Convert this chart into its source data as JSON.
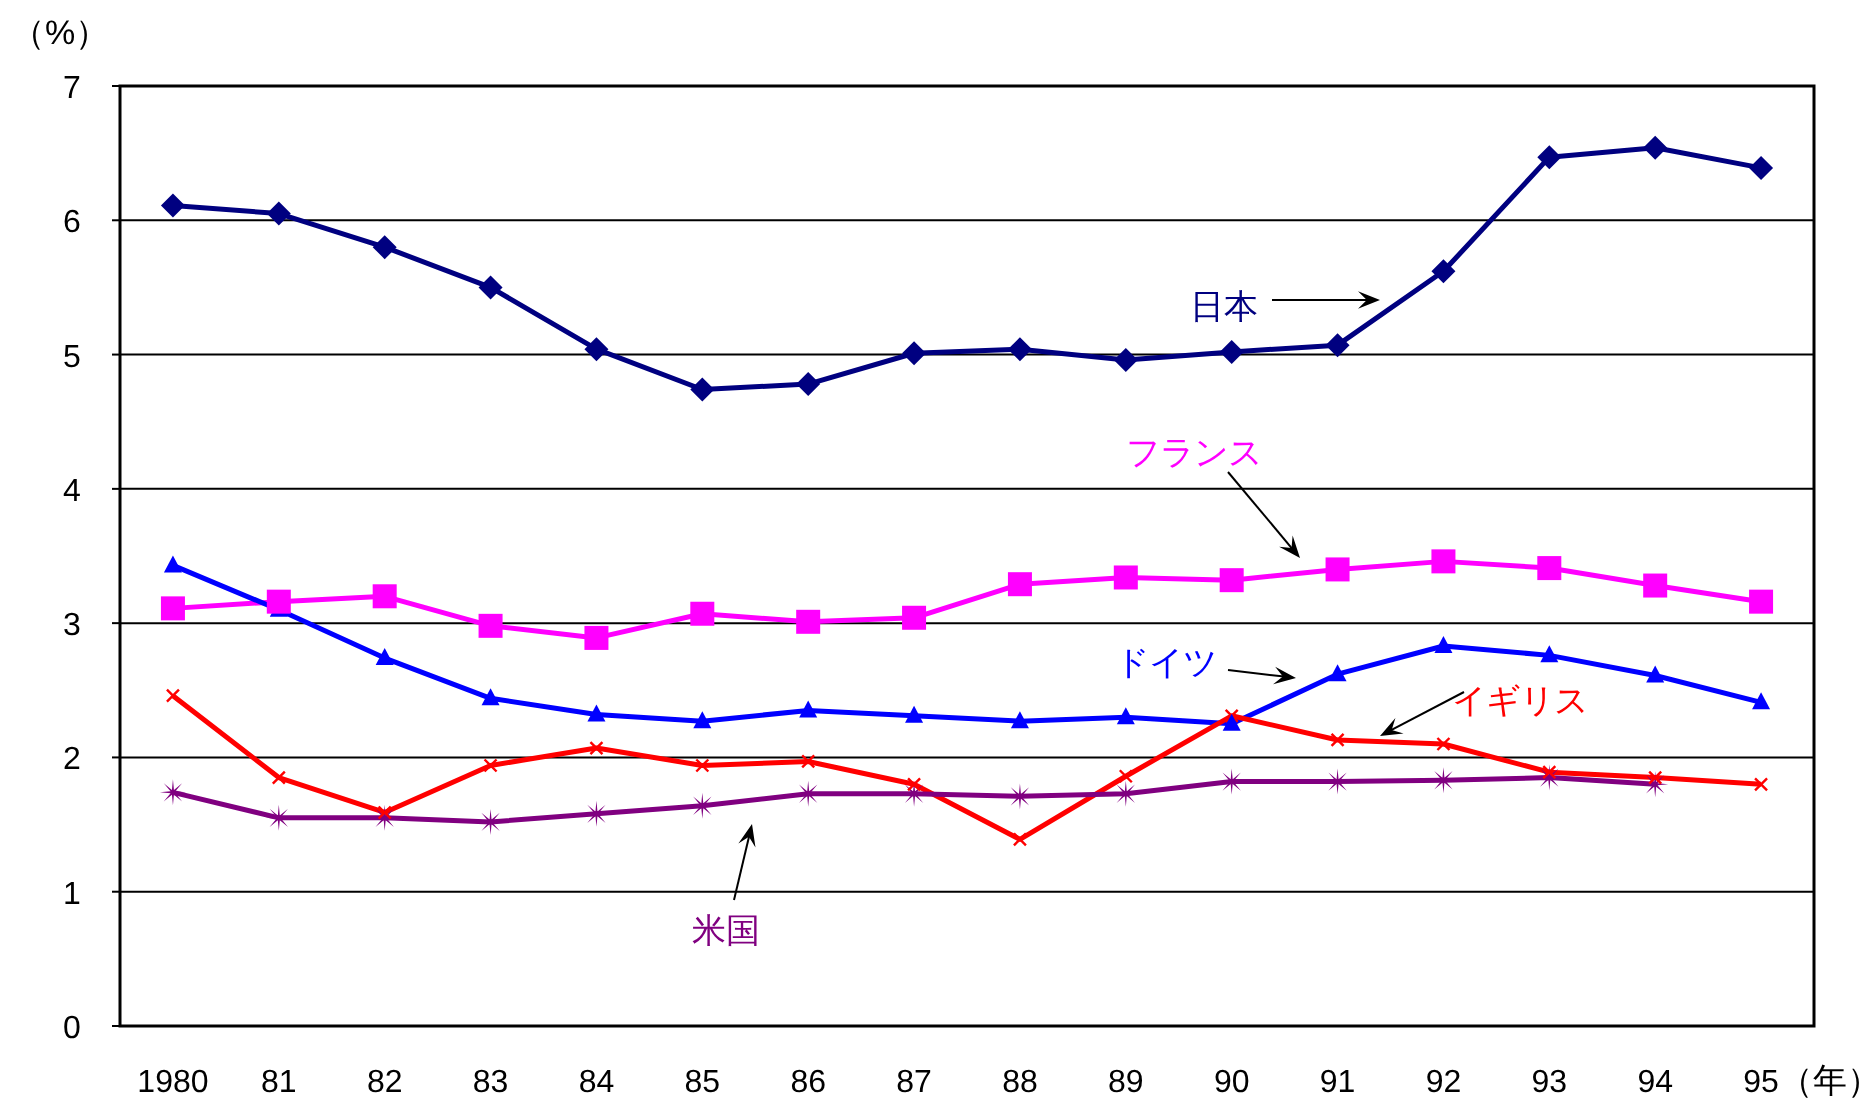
{
  "chart_data": {
    "type": "line",
    "ylabel": "（%）",
    "xlabel": "（年）",
    "categories": [
      "1980",
      "81",
      "82",
      "83",
      "84",
      "85",
      "86",
      "87",
      "88",
      "89",
      "90",
      "91",
      "92",
      "93",
      "94",
      "95"
    ],
    "ylim": [
      0,
      7
    ],
    "yticks": [
      0,
      1,
      2,
      3,
      4,
      5,
      6,
      7
    ],
    "grid": "y",
    "series": [
      {
        "name": "日本",
        "color": "#000080",
        "marker": "diamond",
        "values": [
          6.11,
          6.05,
          5.8,
          5.5,
          5.04,
          4.74,
          4.78,
          5.01,
          5.04,
          4.96,
          5.02,
          5.07,
          5.62,
          6.47,
          6.54,
          6.39
        ]
      },
      {
        "name": "フランス",
        "color": "#ff00ff",
        "marker": "square",
        "values": [
          3.11,
          3.16,
          3.2,
          2.98,
          2.89,
          3.07,
          3.01,
          3.04,
          3.29,
          3.34,
          3.32,
          3.4,
          3.46,
          3.41,
          3.28,
          3.16
        ]
      },
      {
        "name": "ドイツ",
        "color": "#0000ff",
        "marker": "triangle",
        "values": [
          3.43,
          3.1,
          2.74,
          2.44,
          2.32,
          2.27,
          2.35,
          2.31,
          2.27,
          2.3,
          2.25,
          2.62,
          2.83,
          2.76,
          2.61,
          2.41
        ]
      },
      {
        "name": "イギリス",
        "color": "#ff0000",
        "marker": "cross",
        "values": [
          2.46,
          1.85,
          1.59,
          1.94,
          2.07,
          1.94,
          1.97,
          1.8,
          1.39,
          1.86,
          2.31,
          2.13,
          2.1,
          1.89,
          1.85,
          1.8
        ]
      },
      {
        "name": "米国",
        "color": "#800080",
        "marker": "star",
        "values": [
          1.74,
          1.55,
          1.55,
          1.52,
          1.58,
          1.64,
          1.73,
          1.73,
          1.71,
          1.73,
          1.82,
          1.82,
          1.83,
          1.85,
          1.8,
          null
        ]
      }
    ]
  }
}
